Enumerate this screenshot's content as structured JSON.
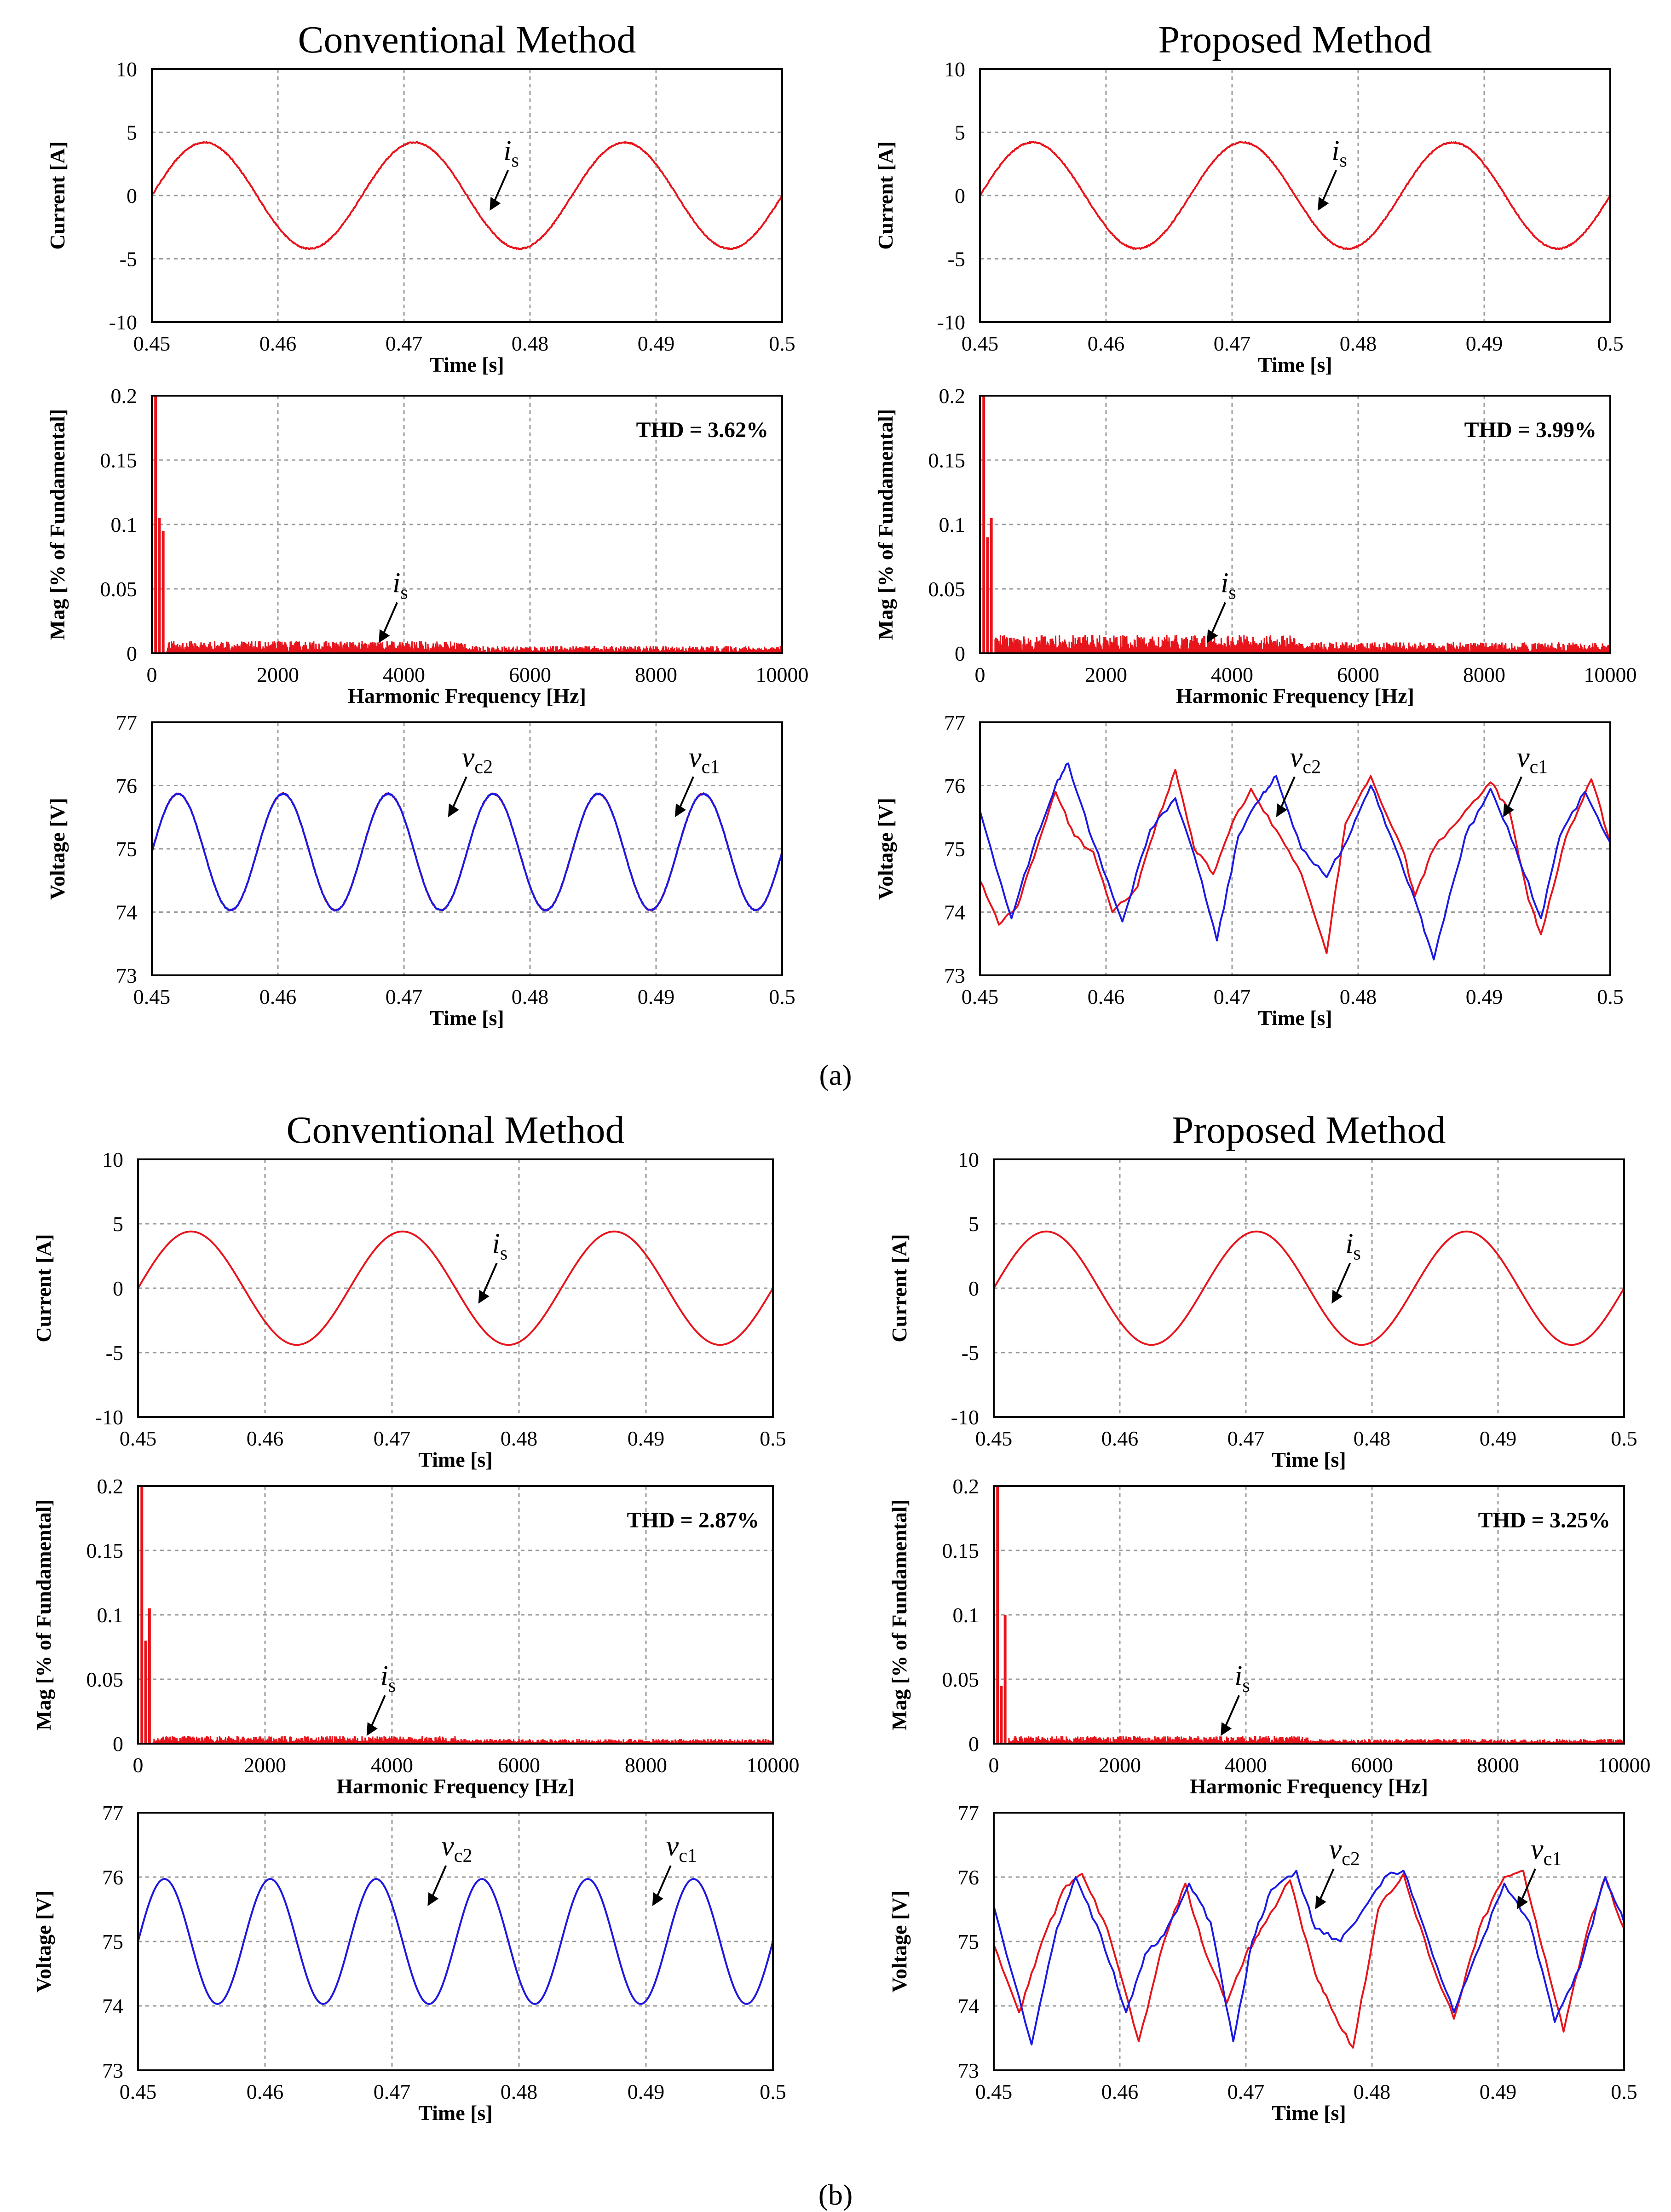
{
  "figure": {
    "label_a": "(a)",
    "label_b": "(b)"
  },
  "colors": {
    "red": "#e8141b",
    "blue": "#1a1ae6",
    "grid": "#9a9a9a",
    "axis": "#000000"
  },
  "chart_data": [
    {
      "id": "a-conv-current",
      "type": "line",
      "title": "Conventional Method",
      "xlabel": "Time [s]",
      "ylabel": "Current [A]",
      "xlim": [
        0.45,
        0.5
      ],
      "ylim": [
        -10,
        10
      ],
      "xticks": [
        0.45,
        0.46,
        0.47,
        0.48,
        0.49,
        0.5
      ],
      "yticks": [
        -10,
        -5,
        0,
        5,
        10
      ],
      "xtick_labels": [
        "0.45",
        "0.46",
        "0.47",
        "0.48",
        "0.49",
        "0.5"
      ],
      "ytick_labels": [
        "-10",
        "-5",
        "0",
        "5",
        "10"
      ],
      "annotation": {
        "text": "i",
        "sub": "s",
        "x": 0.4768,
        "y": -1.2
      },
      "series": [
        {
          "name": "i_s",
          "color": "red",
          "kind": "sine",
          "amplitude": 4.2,
          "freq_hz": 60,
          "phase_deg": 0,
          "noise": 0.05
        }
      ]
    },
    {
      "id": "a-conv-fft",
      "type": "bar",
      "title": "",
      "xlabel": "Harmonic Frequency [Hz]",
      "ylabel": "Mag [% of Fundamental]",
      "xlim": [
        0,
        10000
      ],
      "ylim": [
        0,
        0.2
      ],
      "xticks": [
        0,
        2000,
        4000,
        6000,
        8000,
        10000
      ],
      "yticks": [
        0,
        0.05,
        0.1,
        0.15,
        0.2
      ],
      "xtick_labels": [
        "0",
        "2000",
        "4000",
        "6000",
        "8000",
        "10000"
      ],
      "ytick_labels": [
        "0",
        "0.05",
        "0.1",
        "0.15",
        "0.2"
      ],
      "thd": "THD = 3.62%",
      "annotation": {
        "text": "i",
        "sub": "s",
        "x": 3600,
        "y": 0.008
      },
      "spikes": [
        {
          "x": 60,
          "y": 0.2
        },
        {
          "x": 120,
          "y": 0.105
        },
        {
          "x": 180,
          "y": 0.095
        }
      ],
      "floor": 0.008
    },
    {
      "id": "a-conv-voltage",
      "type": "line",
      "title": "",
      "xlabel": "Time [s]",
      "ylabel": "Voltage [V]",
      "xlim": [
        0.45,
        0.5
      ],
      "ylim": [
        73,
        77
      ],
      "xticks": [
        0.45,
        0.46,
        0.47,
        0.48,
        0.49,
        0.5
      ],
      "yticks": [
        73,
        74,
        75,
        76,
        77
      ],
      "xtick_labels": [
        "0.45",
        "0.46",
        "0.47",
        "0.48",
        "0.49",
        "0.5"
      ],
      "ytick_labels": [
        "73",
        "74",
        "75",
        "76",
        "77"
      ],
      "annotations": [
        {
          "text": "v",
          "sub": "c2",
          "x": 0.4735,
          "y": 75.5
        },
        {
          "text": "v",
          "sub": "c1",
          "x": 0.4915,
          "y": 75.5
        }
      ],
      "series": [
        {
          "name": "v_c2",
          "color": "red",
          "kind": "sine",
          "offset": 74.95,
          "amplitude": 0.92,
          "freq_hz": 120,
          "phase_deg": 0,
          "noise": 0.01
        },
        {
          "name": "v_c1",
          "color": "blue",
          "kind": "sine",
          "offset": 74.95,
          "amplitude": 0.92,
          "freq_hz": 120,
          "phase_deg": 0,
          "noise": 0.01
        }
      ]
    },
    {
      "id": "a-prop-current",
      "type": "line",
      "title": "Proposed Method",
      "xlabel": "Time [s]",
      "ylabel": "Current [A]",
      "xlim": [
        0.45,
        0.5
      ],
      "ylim": [
        -10,
        10
      ],
      "xticks": [
        0.45,
        0.46,
        0.47,
        0.48,
        0.49,
        0.5
      ],
      "yticks": [
        -10,
        -5,
        0,
        5,
        10
      ],
      "xtick_labels": [
        "0.45",
        "0.46",
        "0.47",
        "0.48",
        "0.49",
        "0.5"
      ],
      "ytick_labels": [
        "-10",
        "-5",
        "0",
        "5",
        "10"
      ],
      "annotation": {
        "text": "i",
        "sub": "s",
        "x": 0.4768,
        "y": -1.2
      },
      "series": [
        {
          "name": "i_s",
          "color": "red",
          "kind": "sine",
          "amplitude": 4.2,
          "freq_hz": 60,
          "phase_deg": 0,
          "noise": 0.05
        }
      ]
    },
    {
      "id": "a-prop-fft",
      "type": "bar",
      "title": "",
      "xlabel": "Harmonic Frequency [Hz]",
      "ylabel": "Mag [% of Fundamental]",
      "xlim": [
        0,
        10000
      ],
      "ylim": [
        0,
        0.2
      ],
      "xticks": [
        0,
        2000,
        4000,
        6000,
        8000,
        10000
      ],
      "yticks": [
        0,
        0.05,
        0.1,
        0.15,
        0.2
      ],
      "xtick_labels": [
        "0",
        "2000",
        "4000",
        "6000",
        "8000",
        "10000"
      ],
      "ytick_labels": [
        "0",
        "0.05",
        "0.1",
        "0.15",
        "0.2"
      ],
      "thd": "THD = 3.99%",
      "annotation": {
        "text": "i",
        "sub": "s",
        "x": 3600,
        "y": 0.008
      },
      "spikes": [
        {
          "x": 60,
          "y": 0.2
        },
        {
          "x": 120,
          "y": 0.09
        },
        {
          "x": 180,
          "y": 0.105
        }
      ],
      "floor": 0.012
    },
    {
      "id": "a-prop-voltage",
      "type": "line",
      "title": "",
      "xlabel": "Time [s]",
      "ylabel": "Voltage [V]",
      "xlim": [
        0.45,
        0.5
      ],
      "ylim": [
        73,
        77
      ],
      "xticks": [
        0.45,
        0.46,
        0.47,
        0.48,
        0.49,
        0.5
      ],
      "yticks": [
        73,
        74,
        75,
        76,
        77
      ],
      "xtick_labels": [
        "0.45",
        "0.46",
        "0.47",
        "0.48",
        "0.49",
        "0.5"
      ],
      "ytick_labels": [
        "73",
        "74",
        "75",
        "76",
        "77"
      ],
      "annotations": [
        {
          "text": "v",
          "sub": "c2",
          "x": 0.4735,
          "y": 75.5
        },
        {
          "text": "v",
          "sub": "c1",
          "x": 0.4915,
          "y": 75.5
        }
      ],
      "series": [
        {
          "name": "v_c2",
          "color": "red",
          "kind": "points",
          "x": [
            0.45,
            0.4515,
            0.453,
            0.4545,
            0.456,
            0.4575,
            0.459,
            0.4605,
            0.4625,
            0.464,
            0.4655,
            0.467,
            0.4685,
            0.47,
            0.4715,
            0.4735,
            0.4755,
            0.4775,
            0.479,
            0.481,
            0.4835,
            0.4845,
            0.486,
            0.4885,
            0.4905,
            0.492,
            0.4935,
            0.4945,
            0.4965,
            0.4985,
            0.5
          ],
          "y": [
            74.5,
            73.8,
            74.1,
            75.0,
            75.9,
            75.2,
            74.95,
            74.0,
            74.4,
            75.4,
            76.25,
            75.0,
            74.6,
            75.4,
            75.95,
            75.3,
            74.6,
            73.35,
            75.4,
            76.15,
            75.0,
            74.25,
            75.0,
            75.6,
            76.05,
            75.6,
            74.2,
            73.65,
            75.2,
            76.1,
            75.1
          ]
        },
        {
          "name": "v_c1",
          "color": "blue",
          "kind": "points",
          "x": [
            0.45,
            0.4525,
            0.4545,
            0.456,
            0.457,
            0.459,
            0.4613,
            0.4635,
            0.4655,
            0.467,
            0.4688,
            0.4705,
            0.4725,
            0.4735,
            0.4755,
            0.4775,
            0.4795,
            0.481,
            0.4828,
            0.4845,
            0.486,
            0.4885,
            0.4905,
            0.4925,
            0.4945,
            0.496,
            0.498,
            0.5
          ],
          "y": [
            75.6,
            73.9,
            75.2,
            76.0,
            76.35,
            75.1,
            73.85,
            75.3,
            75.8,
            74.9,
            73.55,
            75.2,
            75.9,
            76.15,
            75.0,
            74.55,
            75.3,
            76.0,
            75.1,
            74.2,
            73.25,
            75.2,
            75.95,
            75.0,
            73.9,
            75.2,
            75.9,
            75.1
          ]
        }
      ]
    },
    {
      "id": "b-conv-current",
      "type": "line",
      "title": "Conventional Method",
      "xlabel": "Time [s]",
      "ylabel": "Current [A]",
      "xlim": [
        0.45,
        0.5
      ],
      "ylim": [
        -10,
        10
      ],
      "xticks": [
        0.45,
        0.46,
        0.47,
        0.48,
        0.49,
        0.5
      ],
      "yticks": [
        -10,
        -5,
        0,
        5,
        10
      ],
      "xtick_labels": [
        "0.45",
        "0.46",
        "0.47",
        "0.48",
        "0.49",
        "0.5"
      ],
      "ytick_labels": [
        "-10",
        "-5",
        "0",
        "5",
        "10"
      ],
      "annotation": {
        "text": "i",
        "sub": "s",
        "x": 0.4768,
        "y": -1.2
      },
      "series": [
        {
          "name": "i_s",
          "color": "red",
          "kind": "sine",
          "amplitude": 4.4,
          "freq_hz": 60,
          "phase_deg": 0,
          "noise": 0.0
        }
      ]
    },
    {
      "id": "b-conv-fft",
      "type": "bar",
      "title": "",
      "xlabel": "Harmonic Frequency [Hz]",
      "ylabel": "Mag [% of Fundamental]",
      "xlim": [
        0,
        10000
      ],
      "ylim": [
        0,
        0.2
      ],
      "xticks": [
        0,
        2000,
        4000,
        6000,
        8000,
        10000
      ],
      "yticks": [
        0,
        0.05,
        0.1,
        0.15,
        0.2
      ],
      "xtick_labels": [
        "0",
        "2000",
        "4000",
        "6000",
        "8000",
        "10000"
      ],
      "ytick_labels": [
        "0",
        "0.05",
        "0.1",
        "0.15",
        "0.2"
      ],
      "thd": "THD = 2.87%",
      "annotation": {
        "text": "i",
        "sub": "s",
        "x": 3600,
        "y": 0.006
      },
      "spikes": [
        {
          "x": 60,
          "y": 0.2
        },
        {
          "x": 120,
          "y": 0.08
        },
        {
          "x": 180,
          "y": 0.105
        }
      ],
      "floor": 0.005
    },
    {
      "id": "b-conv-voltage",
      "type": "line",
      "title": "",
      "xlabel": "Time [s]",
      "ylabel": "Voltage [V]",
      "xlim": [
        0.45,
        0.5
      ],
      "ylim": [
        73,
        77
      ],
      "xticks": [
        0.45,
        0.46,
        0.47,
        0.48,
        0.49,
        0.5
      ],
      "yticks": [
        73,
        74,
        75,
        76,
        77
      ],
      "xtick_labels": [
        "0.45",
        "0.46",
        "0.47",
        "0.48",
        "0.49",
        "0.5"
      ],
      "ytick_labels": [
        "73",
        "74",
        "75",
        "76",
        "77"
      ],
      "annotations": [
        {
          "text": "v",
          "sub": "c2",
          "x": 0.4728,
          "y": 75.55
        },
        {
          "text": "v",
          "sub": "c1",
          "x": 0.4905,
          "y": 75.55
        }
      ],
      "series": [
        {
          "name": "v_c2",
          "color": "red",
          "kind": "sine",
          "offset": 75.0,
          "amplitude": 0.97,
          "freq_hz": 120,
          "phase_deg": 0,
          "noise": 0.0
        },
        {
          "name": "v_c1",
          "color": "blue",
          "kind": "sine",
          "offset": 75.0,
          "amplitude": 0.97,
          "freq_hz": 120,
          "phase_deg": 0,
          "noise": 0.0
        }
      ]
    },
    {
      "id": "b-prop-current",
      "type": "line",
      "title": "Proposed Method",
      "xlabel": "Time [s]",
      "ylabel": "Current [A]",
      "xlim": [
        0.45,
        0.5
      ],
      "ylim": [
        -10,
        10
      ],
      "xticks": [
        0.45,
        0.46,
        0.47,
        0.48,
        0.49,
        0.5
      ],
      "yticks": [
        -10,
        -5,
        0,
        5,
        10
      ],
      "xtick_labels": [
        "0.45",
        "0.46",
        "0.47",
        "0.48",
        "0.49",
        "0.5"
      ],
      "ytick_labels": [
        "-10",
        "-5",
        "0",
        "5",
        "10"
      ],
      "annotation": {
        "text": "i",
        "sub": "s",
        "x": 0.4768,
        "y": -1.2
      },
      "series": [
        {
          "name": "i_s",
          "color": "red",
          "kind": "sine",
          "amplitude": 4.4,
          "freq_hz": 60,
          "phase_deg": 0,
          "noise": 0.0
        }
      ]
    },
    {
      "id": "b-prop-fft",
      "type": "bar",
      "title": "",
      "xlabel": "Harmonic Frequency [Hz]",
      "ylabel": "Mag [% of Fundamental]",
      "xlim": [
        0,
        10000
      ],
      "ylim": [
        0,
        0.2
      ],
      "xticks": [
        0,
        2000,
        4000,
        6000,
        8000,
        10000
      ],
      "yticks": [
        0,
        0.05,
        0.1,
        0.15,
        0.2
      ],
      "xtick_labels": [
        "0",
        "2000",
        "4000",
        "6000",
        "8000",
        "10000"
      ],
      "ytick_labels": [
        "0",
        "0.05",
        "0.1",
        "0.15",
        "0.2"
      ],
      "thd": "THD = 3.25%",
      "annotation": {
        "text": "i",
        "sub": "s",
        "x": 3600,
        "y": 0.006
      },
      "spikes": [
        {
          "x": 60,
          "y": 0.2
        },
        {
          "x": 120,
          "y": 0.045
        },
        {
          "x": 180,
          "y": 0.1
        }
      ],
      "floor": 0.005
    },
    {
      "id": "b-prop-voltage",
      "type": "line",
      "title": "",
      "xlabel": "Time [s]",
      "ylabel": "Voltage [V]",
      "xlim": [
        0.45,
        0.5
      ],
      "ylim": [
        73,
        77
      ],
      "xticks": [
        0.45,
        0.46,
        0.47,
        0.48,
        0.49,
        0.5
      ],
      "yticks": [
        73,
        74,
        75,
        76,
        77
      ],
      "xtick_labels": [
        "0.45",
        "0.46",
        "0.47",
        "0.48",
        "0.49",
        "0.5"
      ],
      "ytick_labels": [
        "73",
        "74",
        "75",
        "76",
        "77"
      ],
      "annotations": [
        {
          "text": "v",
          "sub": "c2",
          "x": 0.4755,
          "y": 75.5
        },
        {
          "text": "v",
          "sub": "c1",
          "x": 0.4915,
          "y": 75.5
        }
      ],
      "series": [
        {
          "name": "v_c2",
          "color": "red",
          "kind": "points",
          "x": [
            0.45,
            0.452,
            0.4535,
            0.4555,
            0.457,
            0.459,
            0.4615,
            0.4635,
            0.4652,
            0.4665,
            0.4685,
            0.47,
            0.4712,
            0.4735,
            0.4755,
            0.4768,
            0.4785,
            0.4805,
            0.4825,
            0.4845,
            0.4865,
            0.4885,
            0.4905,
            0.492,
            0.4935,
            0.4952,
            0.497,
            0.4985,
            0.5
          ],
          "y": [
            74.95,
            73.9,
            74.8,
            75.8,
            76.05,
            75.2,
            73.45,
            75.0,
            75.9,
            75.0,
            74.05,
            74.8,
            75.2,
            75.95,
            74.5,
            73.95,
            73.35,
            75.5,
            76.05,
            74.8,
            73.8,
            75.2,
            76.0,
            76.1,
            74.9,
            73.6,
            75.1,
            76.0,
            75.2
          ]
        },
        {
          "name": "v_c1",
          "color": "blue",
          "kind": "points",
          "x": [
            0.45,
            0.453,
            0.455,
            0.4565,
            0.4585,
            0.4605,
            0.462,
            0.4635,
            0.4655,
            0.4672,
            0.469,
            0.4705,
            0.472,
            0.474,
            0.4755,
            0.4775,
            0.479,
            0.481,
            0.4825,
            0.4845,
            0.4865,
            0.4885,
            0.4905,
            0.4925,
            0.4945,
            0.4965,
            0.4985,
            0.5
          ],
          "y": [
            75.55,
            73.4,
            75.2,
            76.0,
            75.1,
            73.9,
            74.8,
            75.1,
            75.9,
            75.3,
            73.45,
            75.0,
            75.8,
            76.1,
            75.2,
            75.0,
            75.4,
            76.0,
            76.1,
            75.0,
            73.9,
            74.9,
            75.9,
            75.3,
            73.75,
            74.6,
            76.0,
            75.3
          ]
        }
      ]
    }
  ]
}
